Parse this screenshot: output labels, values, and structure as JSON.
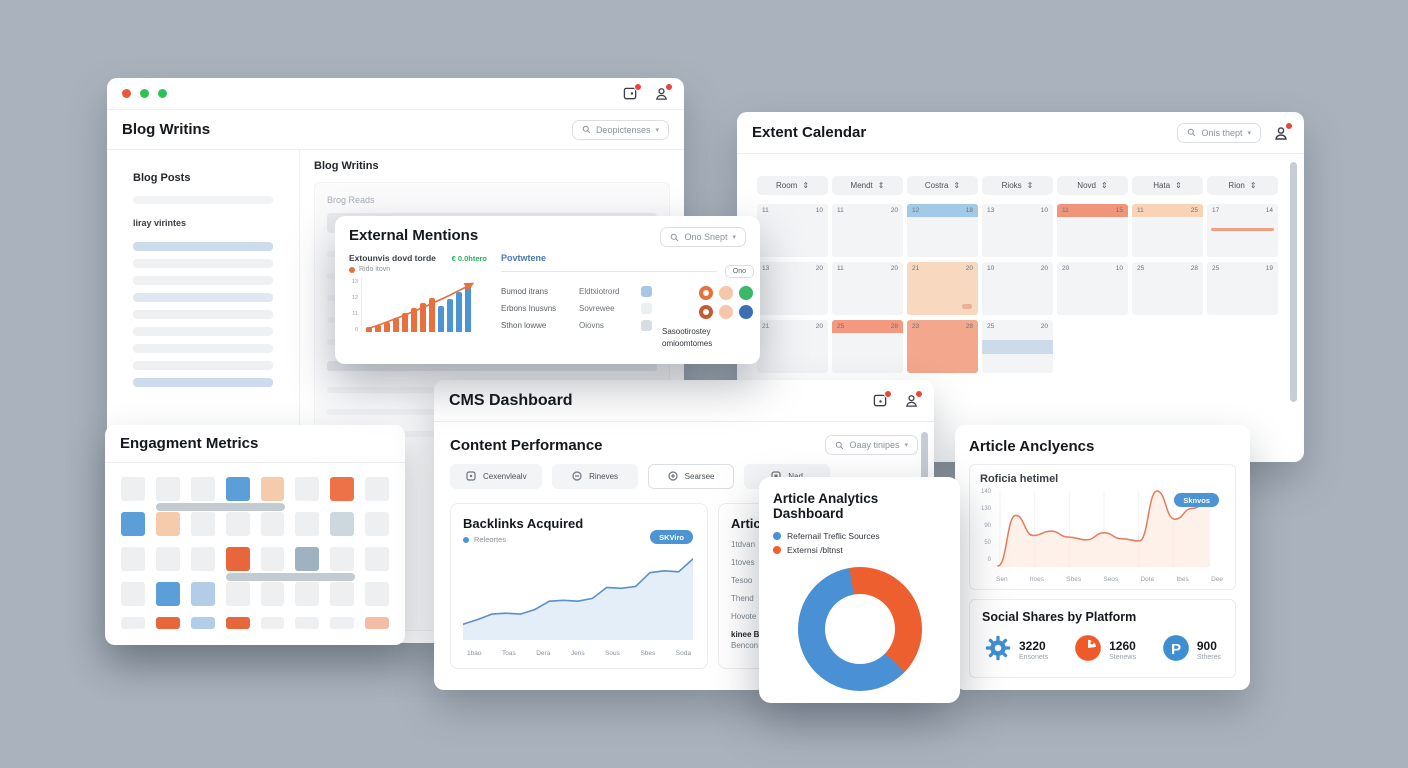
{
  "colors": {
    "accent_orange": "#e8703f",
    "accent_blue": "#4d94d4",
    "green": "#2fbf54",
    "salmon": "#f0957a",
    "peach": "#f8d3b5",
    "donut_blue": "#4a90d4",
    "donut_orange": "#ed5f2e"
  },
  "blog_window": {
    "title": "Blog Writins",
    "search_placeholder": "Deopictenses",
    "sidebar": {
      "heading": "Blog Posts",
      "subheading": "liray virintes",
      "bars": [
        "blue",
        "gray",
        "gray",
        "lightblue",
        "gray",
        "gray",
        "gray",
        "gray",
        "blue"
      ]
    },
    "content": {
      "heading": "Blog Writins",
      "field_label": "Brog Reads",
      "line_count": 9
    }
  },
  "external_mentions": {
    "title": "External Mentions",
    "search_placeholder": "Ono Snept",
    "chart": {
      "type": "bar",
      "title": "Extounvis dovd torde",
      "delta": "€ 0.0htero",
      "legend": "Rido itovn",
      "y_ticks": [
        "13",
        "12",
        "11",
        "0"
      ],
      "orange_values": [
        5,
        7,
        10,
        14,
        19,
        24,
        29,
        34
      ],
      "blue_values": [
        26,
        33,
        40,
        48
      ]
    },
    "panel": {
      "heading": "Povtwtene",
      "chip": "Ono",
      "rows": [
        {
          "left": "Bumod itrans",
          "right": "Eldtxiotrord",
          "swatch": "#a9c4e4"
        },
        {
          "left": "Erbons Inusvns",
          "right": "Sovrewee",
          "swatch": "#eceff2"
        },
        {
          "left": "Sthon lowwe",
          "right": "Oiovns",
          "swatch": "#d7dde3"
        }
      ],
      "circles": [
        {
          "style": "ring",
          "color": "#e8703f"
        },
        {
          "style": "solid",
          "color": "#f6c6a8"
        },
        {
          "style": "solid",
          "color": "#3cb768"
        },
        {
          "style": "ring",
          "color": "#c65a33"
        },
        {
          "style": "solid",
          "color": "#f6c6a8"
        },
        {
          "style": "solid",
          "color": "#3d6fb4"
        }
      ],
      "caption_line1": "Sasootirostey",
      "caption_line2": "omioomtomes"
    }
  },
  "calendar_window": {
    "title": "Extent Calendar",
    "search_placeholder": "Onis thept",
    "columns": [
      "Room",
      "Mendt",
      "Costra",
      "Rioks",
      "Novd",
      "Hata",
      "Rion"
    ],
    "rows": [
      [
        {
          "l": "11",
          "r": "10"
        },
        {
          "l": "11",
          "r": "20"
        },
        {
          "l": "12",
          "r": "18",
          "band": "#a3c9e9"
        },
        {
          "l": "13",
          "r": "10"
        },
        {
          "l": "11",
          "r": "15",
          "band": "#f0957a"
        },
        {
          "l": "11",
          "r": "25",
          "band": "#f8d3b5"
        },
        {
          "l": "17",
          "r": "14",
          "thinline": true
        }
      ],
      [
        {
          "l": "13",
          "r": "20"
        },
        {
          "l": "11",
          "r": "20"
        },
        {
          "l": "21",
          "r": "20",
          "fill": "peach",
          "badge": true
        },
        {
          "l": "10",
          "r": "20"
        },
        {
          "l": "20",
          "r": "10"
        },
        {
          "l": "25",
          "r": "28"
        },
        {
          "l": "25",
          "r": "19"
        }
      ],
      [
        {
          "l": "21",
          "r": "20"
        },
        {
          "l": "25",
          "r": "28",
          "band": "#f2997f"
        },
        {
          "l": "23",
          "r": "28",
          "fill": "salmon"
        },
        {
          "l": "25",
          "r": "20",
          "midband": true
        },
        {
          "ghost": true
        },
        {
          "ghost": true
        },
        {
          "ghost": true
        }
      ]
    ]
  },
  "engagement_window": {
    "title": "Engagment Metrics",
    "palette": {
      "g": "#edeff1",
      "b": "#5b9ed8",
      "p": "#f6cbab",
      "o": "#ed7248",
      "ob": "#e8663c",
      "lb": "#b3cde9",
      "bg": "#cdd8de",
      "sb": "#9fb2c1",
      "lo": "#f3bca4"
    },
    "grid": [
      [
        "g",
        "g",
        "g",
        "b",
        "p",
        "g",
        "o",
        "g"
      ],
      [
        "b",
        "p",
        "g",
        "g",
        "g",
        "g",
        "bg",
        "g"
      ],
      [
        "g",
        "g",
        "g",
        "ob",
        "g",
        "sb",
        "g",
        "g"
      ],
      [
        "g",
        "b",
        "lb",
        "g",
        "g",
        "g",
        "g",
        "g"
      ],
      [
        "g",
        "ob",
        "lb",
        "ob",
        "g",
        "g",
        "g",
        "lo"
      ]
    ]
  },
  "cms_window": {
    "title": "CMS Dashboard",
    "section_title": "Content Performance",
    "search_placeholder": "Oaay tinipes",
    "buttons": [
      {
        "label": "Cexenvlealv",
        "icon": "overview-icon",
        "outline": false
      },
      {
        "label": "Rineves",
        "icon": "reviews-icon",
        "outline": false
      },
      {
        "label": "Searsee",
        "icon": "circle-plus-icon",
        "outline": true
      },
      {
        "label": "Nad",
        "icon": "board-icon",
        "outline": false
      }
    ],
    "backlinks": {
      "type": "area",
      "title": "Backlinks Acquired",
      "legend": "Releortes",
      "badge": "SKViro",
      "x_ticks": [
        "1bao",
        "Toas",
        "Dera",
        "Jens",
        "Sous",
        "Sbes",
        "Soda"
      ],
      "values": [
        15,
        20,
        26,
        27,
        26,
        31,
        40,
        41,
        40,
        43,
        55,
        54,
        56,
        71,
        73,
        72,
        86
      ]
    },
    "articles": {
      "title": "Artic",
      "items": [
        "1tdvan",
        "1toves",
        "Tesoo",
        "Thend",
        "Hovote",
        "kinee B",
        "Bencon"
      ]
    }
  },
  "analytics_overlay": {
    "title": "Article Analytics Dashboard",
    "donut": {
      "type": "pie",
      "segments": [
        {
          "label": "Refernail Treflic Sources",
          "color": "#4a90d4",
          "value": 60
        },
        {
          "label": "Externsi /bltnst",
          "color": "#ed5f2e",
          "value": 40
        }
      ]
    }
  },
  "anclyencs_card": {
    "title": "Article Anclyencs",
    "chart": {
      "type": "line",
      "label": "Roficia hetimel",
      "badge": "Sknvos",
      "y_ticks": [
        "140",
        "130",
        "90",
        "50",
        "0"
      ],
      "x_ticks": [
        "Sen",
        "hoes",
        "Sbes",
        "Seos",
        "Dote",
        "Ibes",
        "Dee"
      ],
      "values": [
        2,
        95,
        58,
        66,
        55,
        50,
        63,
        52,
        48,
        140,
        88,
        108,
        125
      ],
      "y_max": 140
    },
    "social": {
      "title": "Social Shares by Platform",
      "items": [
        {
          "icon": "gear-icon",
          "value": "3220",
          "label": "Ensonets"
        },
        {
          "icon": "slice-icon",
          "value": "1260",
          "label": "Stenews"
        },
        {
          "icon": "pinterest-icon",
          "value": "900",
          "label": "Stheres"
        }
      ]
    }
  }
}
